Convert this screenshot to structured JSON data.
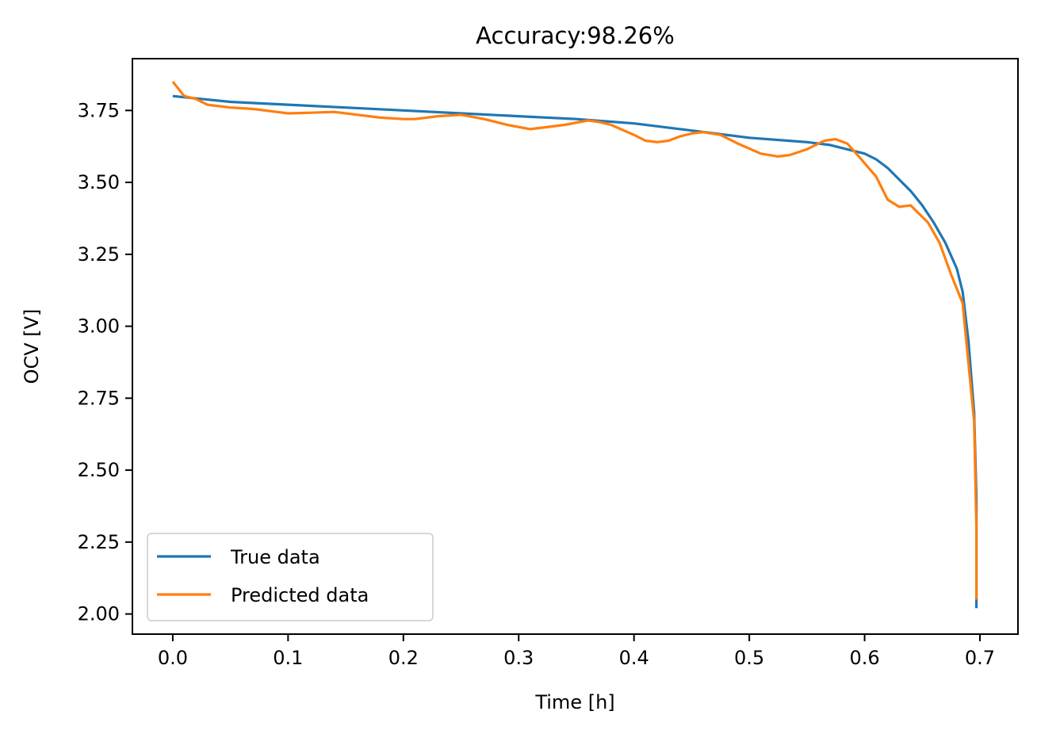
{
  "chart_data": {
    "type": "line",
    "title": "Accuracy:98.26%",
    "xlabel": "Time [h]",
    "ylabel": "OCV [V]",
    "xlim": [
      -0.035,
      0.733
    ],
    "ylim": [
      1.93,
      3.93
    ],
    "xticks": [
      0.0,
      0.1,
      0.2,
      0.3,
      0.4,
      0.5,
      0.6,
      0.7
    ],
    "xtick_labels": [
      "0.0",
      "0.1",
      "0.2",
      "0.3",
      "0.4",
      "0.5",
      "0.6",
      "0.7"
    ],
    "yticks": [
      2.0,
      2.25,
      2.5,
      2.75,
      3.0,
      3.25,
      3.5,
      3.75
    ],
    "ytick_labels": [
      "2.00",
      "2.25",
      "2.50",
      "2.75",
      "3.00",
      "3.25",
      "3.50",
      "3.75"
    ],
    "grid": false,
    "legend_position": "lower-left",
    "series": [
      {
        "name": "True data",
        "color": "#1f77b4",
        "x": [
          0.0,
          0.05,
          0.1,
          0.15,
          0.2,
          0.25,
          0.3,
          0.35,
          0.4,
          0.45,
          0.5,
          0.55,
          0.57,
          0.59,
          0.6,
          0.61,
          0.62,
          0.63,
          0.64,
          0.65,
          0.66,
          0.67,
          0.68,
          0.685,
          0.69,
          0.695,
          0.697,
          0.697
        ],
        "y": [
          3.8,
          3.78,
          3.77,
          3.76,
          3.75,
          3.74,
          3.73,
          3.72,
          3.705,
          3.68,
          3.655,
          3.64,
          3.63,
          3.61,
          3.6,
          3.58,
          3.55,
          3.51,
          3.47,
          3.42,
          3.36,
          3.29,
          3.2,
          3.12,
          2.95,
          2.7,
          2.4,
          2.02
        ]
      },
      {
        "name": "Predicted data",
        "color": "#ff7f0e",
        "x": [
          0.0,
          0.01,
          0.02,
          0.03,
          0.05,
          0.07,
          0.09,
          0.1,
          0.12,
          0.14,
          0.16,
          0.18,
          0.2,
          0.21,
          0.23,
          0.25,
          0.27,
          0.29,
          0.31,
          0.32,
          0.34,
          0.36,
          0.37,
          0.38,
          0.4,
          0.41,
          0.42,
          0.43,
          0.44,
          0.45,
          0.46,
          0.475,
          0.49,
          0.51,
          0.525,
          0.535,
          0.55,
          0.565,
          0.575,
          0.585,
          0.595,
          0.61,
          0.62,
          0.63,
          0.64,
          0.655,
          0.665,
          0.675,
          0.685,
          0.695,
          0.697,
          0.697
        ],
        "y": [
          3.85,
          3.8,
          3.79,
          3.77,
          3.76,
          3.755,
          3.745,
          3.74,
          3.742,
          3.745,
          3.735,
          3.725,
          3.72,
          3.72,
          3.73,
          3.735,
          3.72,
          3.7,
          3.685,
          3.69,
          3.7,
          3.715,
          3.71,
          3.7,
          3.665,
          3.645,
          3.64,
          3.645,
          3.66,
          3.67,
          3.675,
          3.665,
          3.635,
          3.6,
          3.59,
          3.595,
          3.615,
          3.645,
          3.65,
          3.635,
          3.59,
          3.52,
          3.44,
          3.415,
          3.42,
          3.36,
          3.29,
          3.18,
          3.08,
          2.67,
          2.3,
          2.05
        ]
      }
    ]
  }
}
